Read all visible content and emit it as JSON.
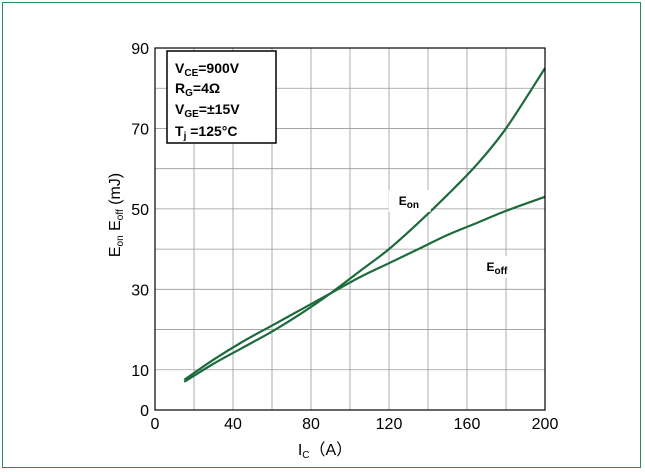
{
  "chart_data": {
    "type": "line",
    "xlabel": "I",
    "xlabel_sub": "C",
    "xlabel_unit": "（A）",
    "ylabel_parts": [
      "E",
      "on",
      " E",
      "off",
      " (mJ)"
    ],
    "xlim": [
      0,
      200
    ],
    "ylim": [
      0,
      90
    ],
    "x_ticks": [
      0,
      40,
      80,
      120,
      160,
      200
    ],
    "y_ticks": [
      0,
      10,
      30,
      50,
      70,
      90
    ],
    "grid": true,
    "legend_placement": "top-left",
    "conditions": [
      {
        "main": "V",
        "sub": "CE",
        "rest": "=900V"
      },
      {
        "main": "R",
        "sub": "G",
        "rest": "=4Ω"
      },
      {
        "main": "V",
        "sub": "GE",
        "rest": "=±15V"
      },
      {
        "main": "T",
        "sub": "j",
        "rest": " =125°C"
      }
    ],
    "series": [
      {
        "name": "E",
        "name_sub": "on",
        "label_at": [
          125,
          51
        ],
        "x": [
          15,
          30,
          45,
          60,
          75,
          90,
          105,
          120,
          135,
          150,
          165,
          180,
          200
        ],
        "y": [
          7,
          11.5,
          15.5,
          19.5,
          24,
          29,
          34.5,
          40,
          46.5,
          53.5,
          61,
          70,
          85
        ]
      },
      {
        "name": "E",
        "name_sub": "off",
        "label_at": [
          170,
          34.5
        ],
        "x": [
          15,
          30,
          45,
          60,
          75,
          90,
          105,
          120,
          135,
          150,
          165,
          180,
          200
        ],
        "y": [
          7.5,
          12.5,
          17,
          21,
          25,
          29,
          33,
          36.5,
          40,
          43.5,
          46.5,
          49.5,
          53
        ]
      }
    ],
    "colors": {
      "curve": "#1d6b3c",
      "grid": "#9a9a9a",
      "frame": "#2e8b57"
    }
  }
}
